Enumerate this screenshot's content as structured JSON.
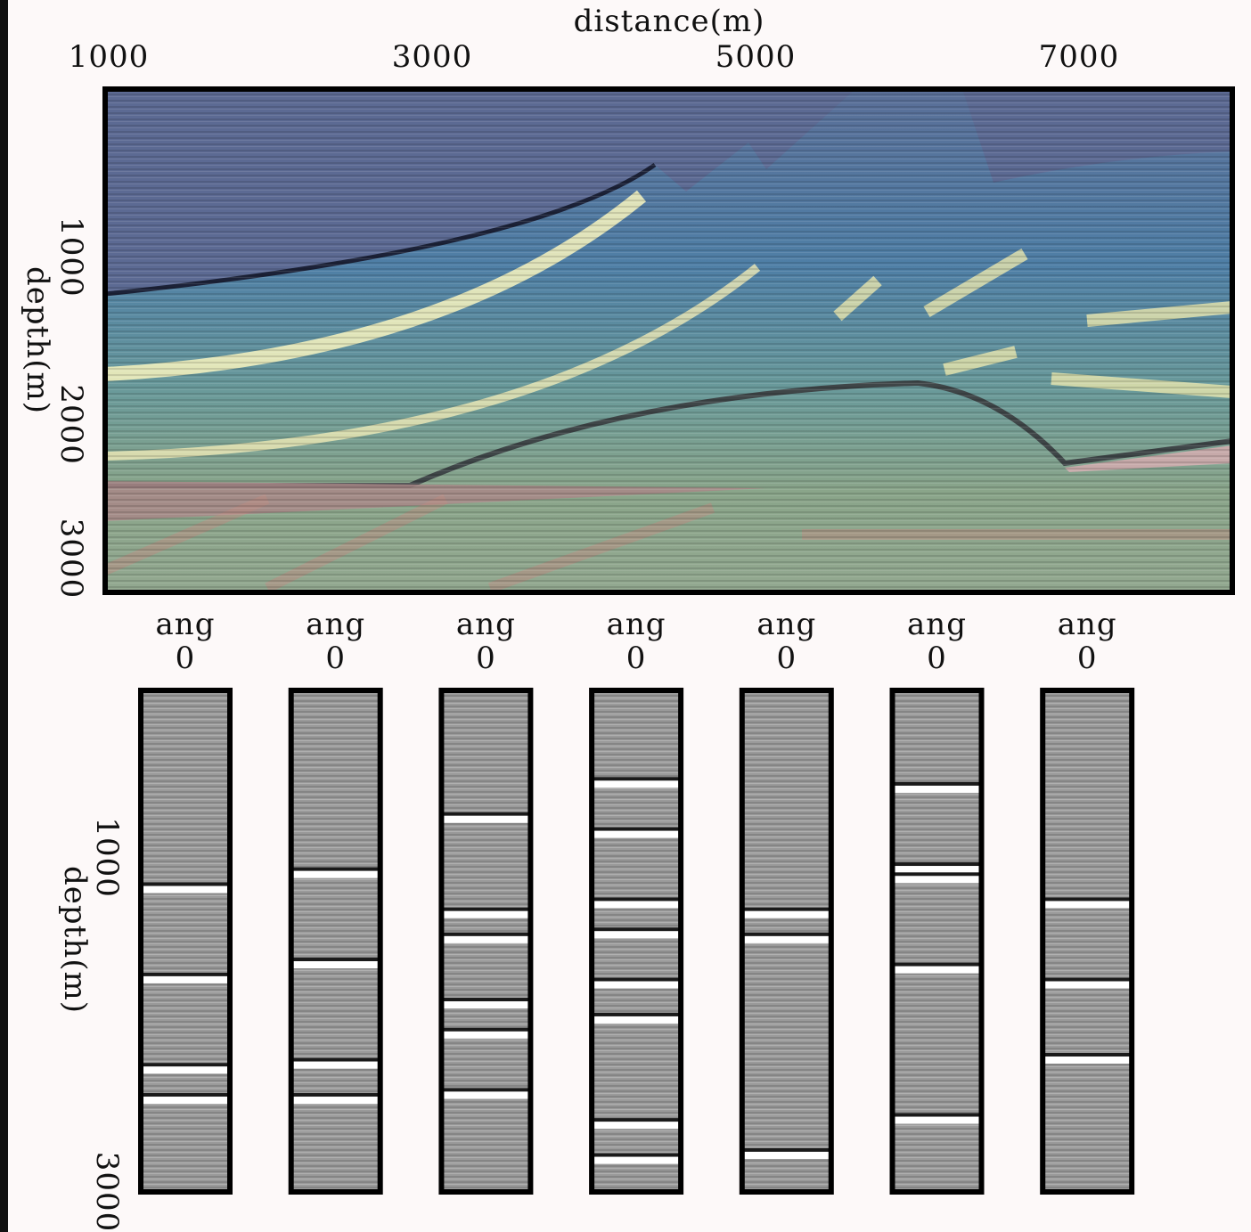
{
  "top_panel": {
    "xlabel": "distance(m)",
    "ylabel": "depth(m)",
    "xlim": [
      1000,
      7970
    ],
    "xticks": [
      1000,
      3000,
      5000,
      7000
    ],
    "ylim": [
      0,
      3000
    ],
    "yticks": [
      1000,
      2000,
      3000
    ]
  },
  "gathers": {
    "ylabel": "depth(m)",
    "ylim": [
      0,
      3000
    ],
    "yticks": [
      1000,
      3000
    ],
    "panels": [
      {
        "label": "ang",
        "value": 0
      },
      {
        "label": "ang",
        "value": 0
      },
      {
        "label": "ang",
        "value": 0
      },
      {
        "label": "ang",
        "value": 0
      },
      {
        "label": "ang",
        "value": 0
      },
      {
        "label": "ang",
        "value": 0
      },
      {
        "label": "ang",
        "value": 0
      }
    ]
  }
}
